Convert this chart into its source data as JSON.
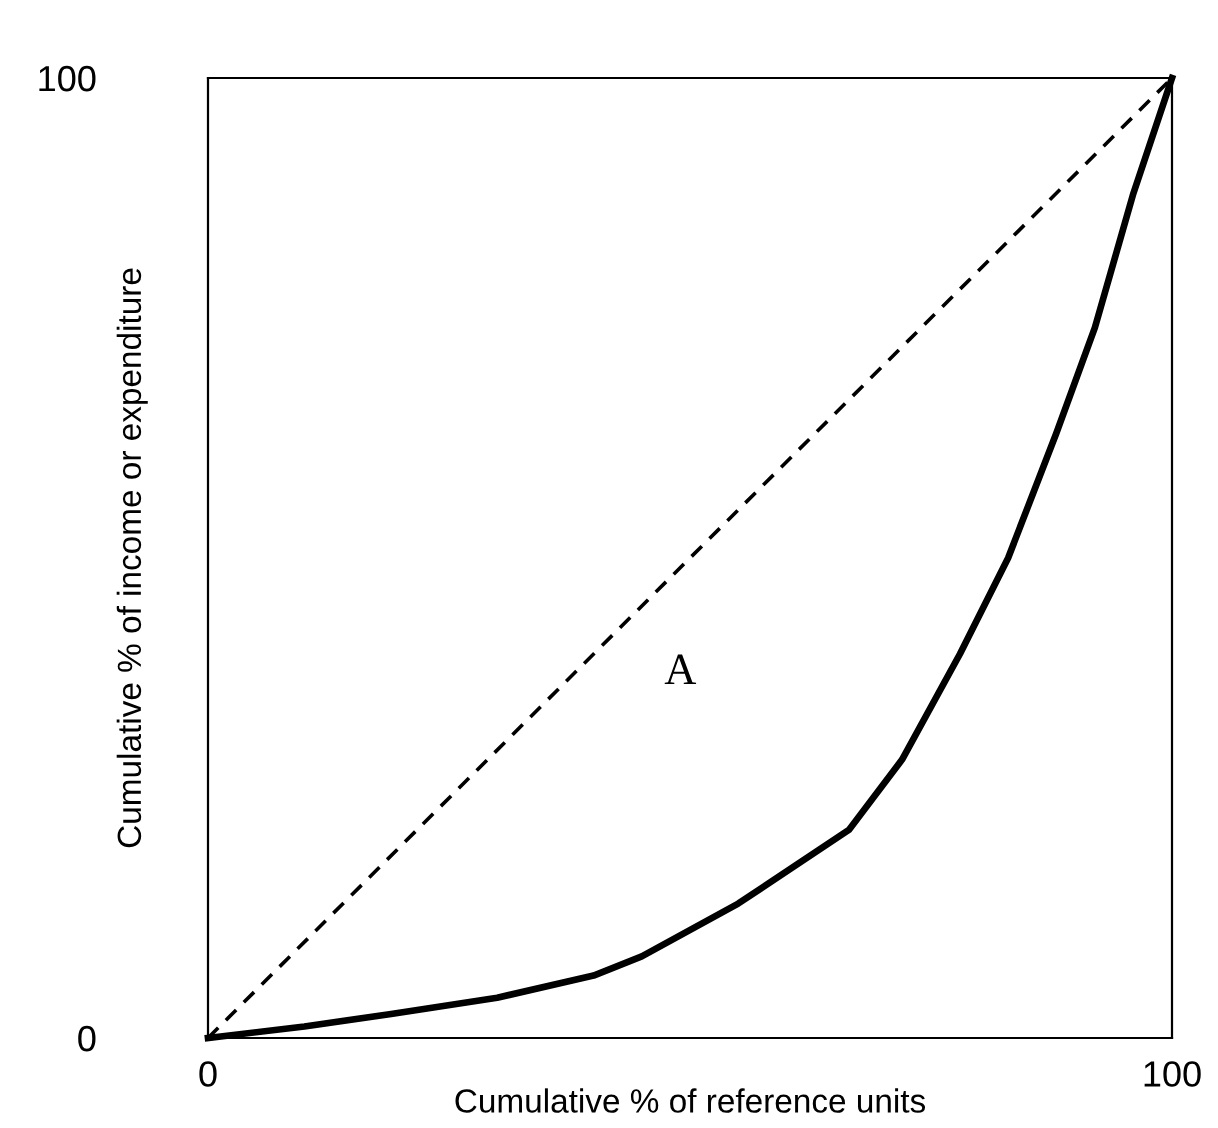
{
  "chart_data": {
    "type": "line",
    "xlabel": "Cumulative % of reference units",
    "ylabel": "Cumulative % of income or expenditure",
    "xlim": [
      0,
      100
    ],
    "ylim": [
      0,
      100
    ],
    "xticks": [
      0,
      100
    ],
    "yticks": [
      0,
      100
    ],
    "legend": false,
    "marker": "none",
    "series": [
      {
        "x": [
          0,
          100
        ],
        "values": [
          0,
          100
        ],
        "color": "#000000",
        "line_style": "dashed"
      },
      {
        "x": [
          0,
          10,
          19,
          30,
          40,
          45,
          55,
          66.5,
          72,
          78,
          83,
          88,
          92,
          96,
          100
        ],
        "values": [
          0,
          1.2,
          2.5,
          4.2,
          6.5,
          8.5,
          14,
          21.7,
          29,
          40,
          50,
          63,
          74,
          88,
          100
        ],
        "color": "#000000",
        "line_style": "solid"
      }
    ],
    "annotations": [
      "A"
    ]
  }
}
